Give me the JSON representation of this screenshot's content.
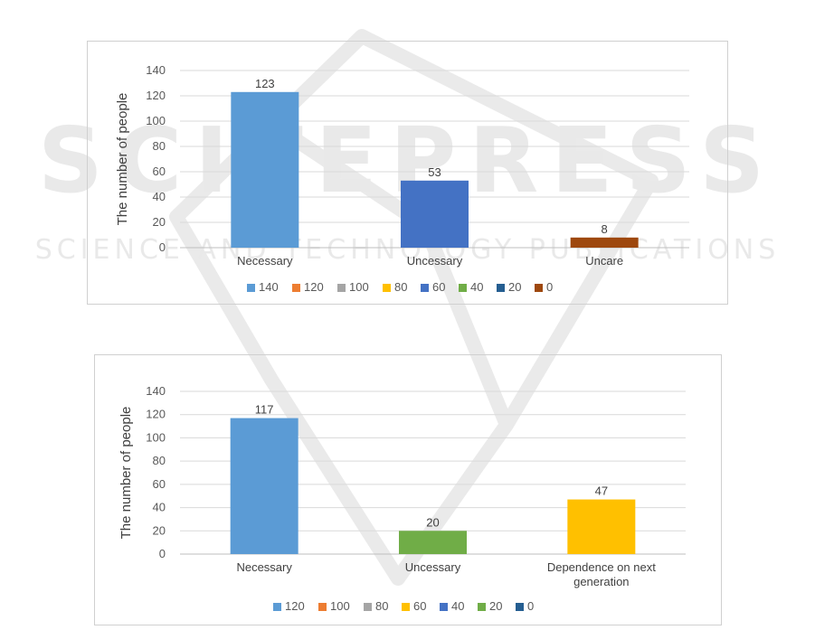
{
  "watermark": {
    "big": "SCITEPRESS",
    "small": "SCIENCE AND TECHNOLOGY PUBLICATIONS"
  },
  "chart_data": [
    {
      "type": "bar",
      "title": "",
      "xlabel": "",
      "ylabel": "The number of people",
      "ylim": [
        0,
        140
      ],
      "yticks": [
        0,
        20,
        40,
        60,
        80,
        100,
        120,
        140
      ],
      "categories": [
        "Necessary",
        "Uncessary",
        "Uncare"
      ],
      "values": [
        123,
        53,
        8
      ],
      "bar_colors": [
        "#5b9bd5",
        "#4472c4",
        "#9e480e"
      ],
      "grid": true,
      "legend_position": "bottom",
      "legend": [
        {
          "label": "140",
          "color": "#5b9bd5"
        },
        {
          "label": "120",
          "color": "#ed7d31"
        },
        {
          "label": "100",
          "color": "#a5a5a5"
        },
        {
          "label": "80",
          "color": "#ffc000"
        },
        {
          "label": "60",
          "color": "#4472c4"
        },
        {
          "label": "40",
          "color": "#70ad47"
        },
        {
          "label": "20",
          "color": "#255e91"
        },
        {
          "label": "0",
          "color": "#9e480e"
        }
      ]
    },
    {
      "type": "bar",
      "title": "",
      "xlabel": "",
      "ylabel": "The number of people",
      "ylim": [
        0,
        140
      ],
      "yticks": [
        0,
        20,
        40,
        60,
        80,
        100,
        120,
        140
      ],
      "categories": [
        "Necessary",
        "Uncessary",
        "Dependence on next generation"
      ],
      "values": [
        117,
        20,
        47
      ],
      "bar_colors": [
        "#5b9bd5",
        "#70ad47",
        "#ffc000"
      ],
      "grid": true,
      "legend_position": "bottom",
      "legend": [
        {
          "label": "120",
          "color": "#5b9bd5"
        },
        {
          "label": "100",
          "color": "#ed7d31"
        },
        {
          "label": "80",
          "color": "#a5a5a5"
        },
        {
          "label": "60",
          "color": "#ffc000"
        },
        {
          "label": "40",
          "color": "#4472c4"
        },
        {
          "label": "20",
          "color": "#70ad47"
        },
        {
          "label": "0",
          "color": "#255e91"
        }
      ]
    }
  ]
}
